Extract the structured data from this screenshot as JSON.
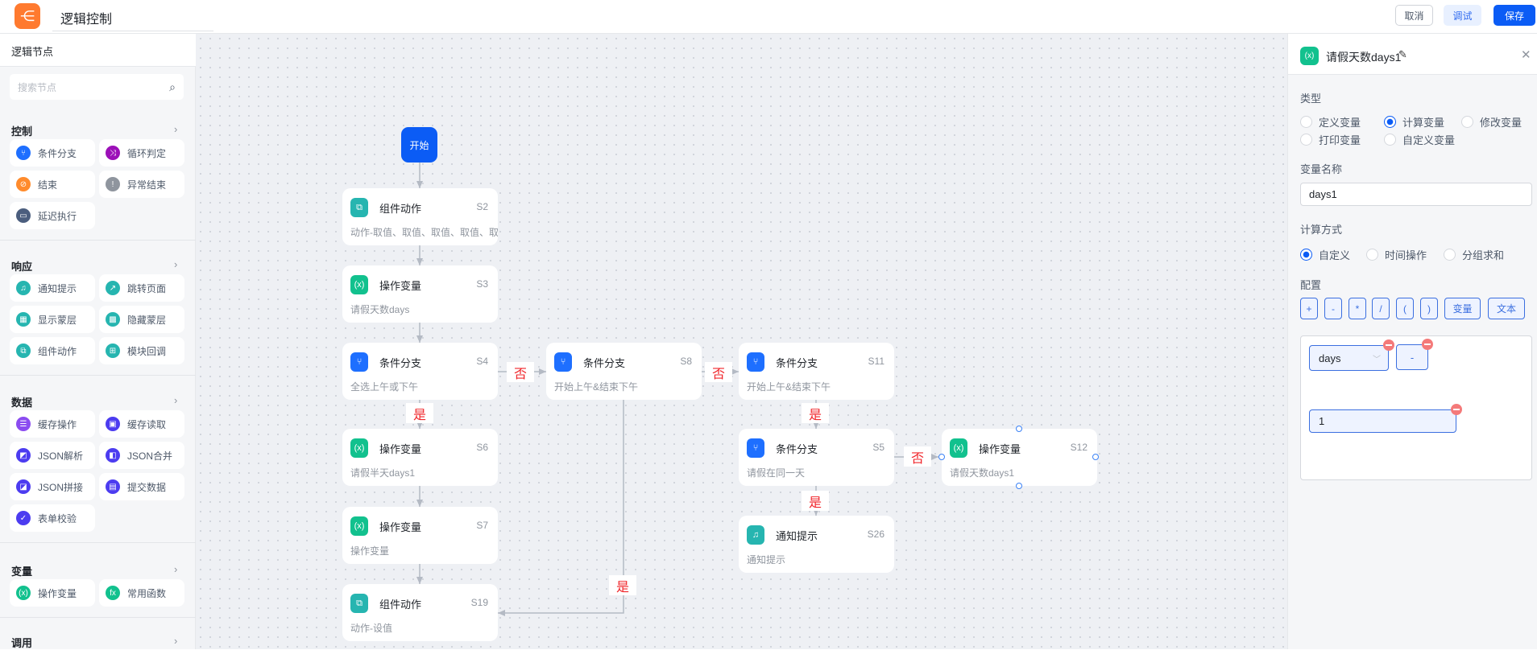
{
  "header": {
    "title": "逻辑控制",
    "logo_icon": "flow-share-icon",
    "cancel": "取消",
    "debug": "调试",
    "save": "保存"
  },
  "sidebar": {
    "title": "逻辑节点",
    "search_placeholder": "搜索节点",
    "sections": [
      {
        "title": "控制",
        "items": [
          {
            "label": "条件分支",
            "icon": "branch-icon",
            "color": "#1e6fff"
          },
          {
            "label": "循环判定",
            "icon": "loop-icon",
            "color": "#9c10b8"
          },
          {
            "label": "结束",
            "icon": "end-icon",
            "color": "#ff8b2c"
          },
          {
            "label": "异常结束",
            "icon": "error-end-icon",
            "color": "#8f959e"
          },
          {
            "label": "延迟执行",
            "icon": "delay-icon",
            "color": "#4b5e7e"
          }
        ]
      },
      {
        "title": "响应",
        "items": [
          {
            "label": "通知提示",
            "icon": "bell-icon",
            "color": "#26b5b0"
          },
          {
            "label": "跳转页面",
            "icon": "redirect-icon",
            "color": "#26b5b0"
          },
          {
            "label": "显示蒙层",
            "icon": "show-mask-icon",
            "color": "#26b5b0"
          },
          {
            "label": "隐藏蒙层",
            "icon": "hide-mask-icon",
            "color": "#26b5b0"
          },
          {
            "label": "组件动作",
            "icon": "component-action-icon",
            "color": "#26b5b0"
          },
          {
            "label": "模块回调",
            "icon": "module-callback-icon",
            "color": "#26b5b0"
          }
        ]
      },
      {
        "title": "数据",
        "items": [
          {
            "label": "缓存操作",
            "icon": "cache-op-icon",
            "color": "#8b4cf0"
          },
          {
            "label": "缓存读取",
            "icon": "save-icon",
            "color": "#4c3cf0"
          },
          {
            "label": "JSON解析",
            "icon": "json-parse-icon",
            "color": "#4c3cf0"
          },
          {
            "label": "JSON合并",
            "icon": "json-merge-icon",
            "color": "#4c3cf0"
          },
          {
            "label": "JSON拼接",
            "icon": "json-join-icon",
            "color": "#4c3cf0"
          },
          {
            "label": "提交数据",
            "icon": "submit-icon",
            "color": "#4c3cf0"
          },
          {
            "label": "表单校验",
            "icon": "form-check-icon",
            "color": "#4c3cf0"
          }
        ]
      },
      {
        "title": "变量",
        "items": [
          {
            "label": "操作变量",
            "icon": "variable-icon",
            "color": "#12c18e"
          },
          {
            "label": "常用函数",
            "icon": "function-icon",
            "color": "#12c18e"
          }
        ]
      },
      {
        "title": "调用",
        "items": []
      }
    ]
  },
  "canvas": {
    "start": "开始",
    "nodes": [
      {
        "title": "组件动作",
        "id": "S2",
        "desc": "动作-取值、取值、取值、取值、取",
        "icon": "component-action-icon",
        "color": "#26b5b0"
      },
      {
        "title": "操作变量",
        "id": "S3",
        "desc": "请假天数days",
        "icon": "variable-icon",
        "color": "#12c18e"
      },
      {
        "title": "条件分支",
        "id": "S4",
        "desc": "全选上午或下午",
        "icon": "branch-icon",
        "color": "#1e6fff"
      },
      {
        "title": "条件分支",
        "id": "S8",
        "desc": "开始上午&结束下午",
        "icon": "branch-icon",
        "color": "#1e6fff"
      },
      {
        "title": "条件分支",
        "id": "S11",
        "desc": "开始上午&结束下午",
        "icon": "branch-icon",
        "color": "#1e6fff"
      },
      {
        "title": "操作变量",
        "id": "S6",
        "desc": "请假半天days1",
        "icon": "variable-icon",
        "color": "#12c18e"
      },
      {
        "title": "操作变量",
        "id": "S7",
        "desc": "操作变量",
        "icon": "variable-icon",
        "color": "#12c18e"
      },
      {
        "title": "组件动作",
        "id": "S19",
        "desc": "动作-设值",
        "icon": "component-action-icon",
        "color": "#26b5b0"
      },
      {
        "title": "条件分支",
        "id": "S5",
        "desc": "请假在同一天",
        "icon": "branch-icon",
        "color": "#1e6fff"
      },
      {
        "title": "通知提示",
        "id": "S26",
        "desc": "通知提示",
        "icon": "bell-icon",
        "color": "#26b5b0"
      },
      {
        "title": "操作变量",
        "id": "S12",
        "desc": "请假天数days1",
        "icon": "variable-icon",
        "color": "#12c18e"
      }
    ],
    "edge_labels": [
      "否",
      "否",
      "是",
      "是",
      "是",
      "否",
      "是"
    ]
  },
  "panel": {
    "title": "请假天数days1",
    "type_label": "类型",
    "types": [
      {
        "label": "定义变量",
        "checked": false
      },
      {
        "label": "计算变量",
        "checked": true
      },
      {
        "label": "修改变量",
        "checked": false
      },
      {
        "label": "打印变量",
        "checked": false
      },
      {
        "label": "自定义变量",
        "checked": false
      }
    ],
    "name_label": "变量名称",
    "name_value": "days1",
    "calc_label": "计算方式",
    "calcs": [
      {
        "label": "自定义",
        "checked": true
      },
      {
        "label": "时间操作",
        "checked": false
      },
      {
        "label": "分组求和",
        "checked": false
      }
    ],
    "config_label": "配置",
    "ops": [
      "+",
      "-",
      "*",
      "/",
      "(",
      ")",
      "变量",
      "文本"
    ],
    "expression": {
      "variable": "days",
      "operator": "-",
      "value": "1"
    }
  },
  "colors": {
    "primary": "#0b5cf5",
    "edge_label": "#f0262b"
  }
}
